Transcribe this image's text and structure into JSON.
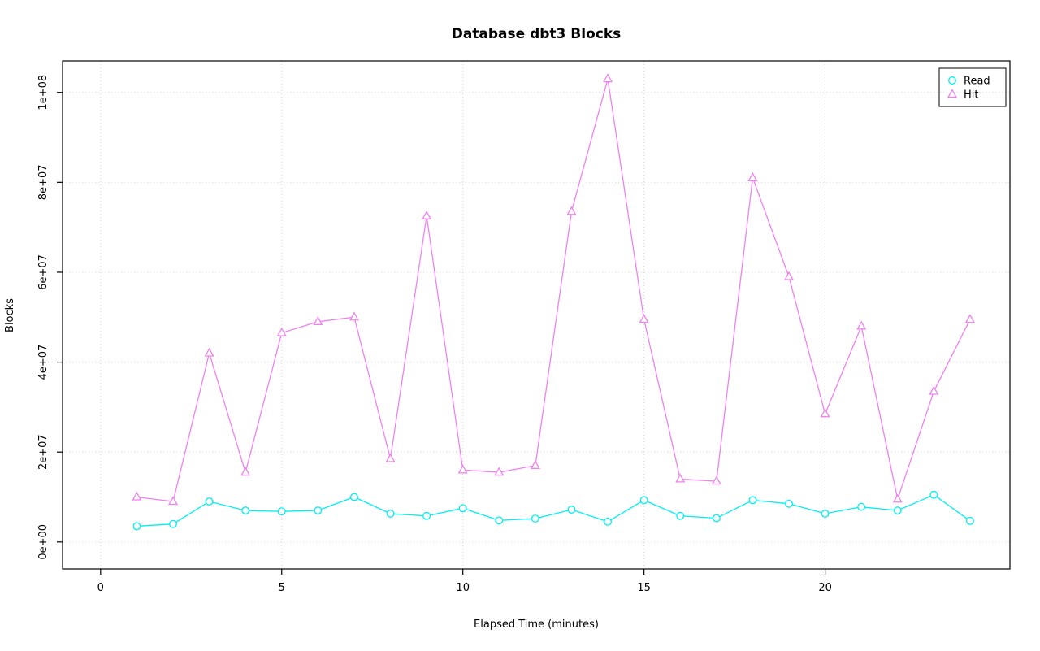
{
  "chart_data": {
    "type": "line",
    "title": "Database dbt3 Blocks",
    "xlabel": "Elapsed Time (minutes)",
    "ylabel": "Blocks",
    "x": [
      1,
      2,
      3,
      4,
      5,
      6,
      7,
      8,
      9,
      10,
      11,
      12,
      13,
      14,
      15,
      16,
      17,
      18,
      19,
      20,
      21,
      22,
      23,
      24
    ],
    "series": [
      {
        "name": "Read",
        "color": "#00EFEF",
        "marker": "circle",
        "values": [
          3500000,
          4000000,
          9000000,
          7000000,
          6800000,
          7000000,
          10000000,
          6300000,
          5800000,
          7500000,
          4800000,
          5200000,
          7200000,
          4500000,
          9300000,
          5800000,
          5300000,
          9300000,
          8500000,
          6300000,
          7800000,
          7000000,
          10500000,
          4700000
        ]
      },
      {
        "name": "Hit",
        "color": "#EE82EE",
        "marker": "triangle",
        "values": [
          10000000,
          9000000,
          42000000,
          15500000,
          46500000,
          49000000,
          50000000,
          18500000,
          72500000,
          16000000,
          15500000,
          17000000,
          73500000,
          103000000,
          49500000,
          14000000,
          13500000,
          81000000,
          59000000,
          28500000,
          48000000,
          9500000,
          33500000,
          49500000
        ]
      }
    ],
    "x_ticks": {
      "values": [
        0,
        5,
        10,
        15,
        20
      ],
      "labels": [
        "0",
        "5",
        "10",
        "15",
        "20"
      ]
    },
    "y_ticks": {
      "values": [
        0,
        20000000,
        40000000,
        60000000,
        80000000,
        100000000
      ],
      "labels": [
        "0e+00",
        "2e+07",
        "4e+07",
        "6e+07",
        "8e+07",
        "1e+08"
      ]
    },
    "xlim": [
      -1.05,
      25.1
    ],
    "ylim": [
      -6000000,
      107000000
    ],
    "grid": true,
    "legend": {
      "position": "top-right",
      "entries": [
        "Read",
        "Hit"
      ]
    }
  }
}
